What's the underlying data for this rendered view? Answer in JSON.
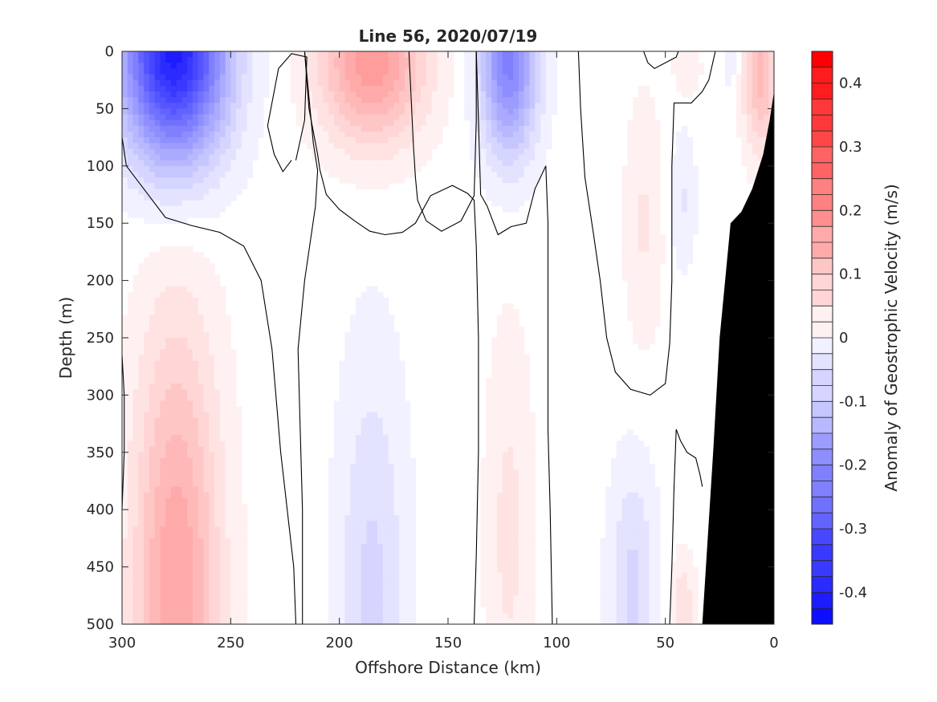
{
  "chart_data": {
    "type": "heatmap",
    "title": "Line 56, 2020/07/19",
    "xlabel": "Offshore Distance (km)",
    "ylabel": "Depth (m)",
    "colorbar_label": "Anomaly of Geostrophic Velocity (m/s)",
    "x_range": [
      300,
      0
    ],
    "y_range": [
      0,
      500
    ],
    "x_ticks": [
      "300",
      "250",
      "200",
      "150",
      "100",
      "50",
      "0"
    ],
    "y_ticks": [
      "0",
      "50",
      "100",
      "150",
      "200",
      "250",
      "300",
      "350",
      "400",
      "450",
      "500"
    ],
    "colorbar_range": [
      -0.45,
      0.45
    ],
    "colorbar_step": 0.025,
    "colorbar_ticks": [
      "0.4",
      "0.3",
      "0.2",
      "0.1",
      "0",
      "-0.1",
      "-0.2",
      "-0.3",
      "-0.4"
    ],
    "colormap": {
      "negative": "#0000ff",
      "zero": "#ffffff",
      "positive": "#ff0000"
    },
    "bathymetry_color": "#000000",
    "features": [
      {
        "x": 276,
        "depth": 0,
        "peak": -0.4,
        "width_km": 24,
        "depth_scale_m": 95
      },
      {
        "x": 185,
        "depth": 10,
        "peak": 0.18,
        "width_km": 24,
        "depth_scale_m": 70
      },
      {
        "x": 122,
        "depth": 10,
        "peak": -0.22,
        "width_km": 13,
        "depth_scale_m": 80
      },
      {
        "x": 275,
        "depth": 470,
        "peak": 0.16,
        "width_km": 20,
        "depth_scale_m": 230
      },
      {
        "x": 185,
        "depth": 480,
        "peak": -0.07,
        "width_km": 16,
        "depth_scale_m": 210
      },
      {
        "x": 122,
        "depth": 420,
        "peak": 0.045,
        "width_km": 11,
        "depth_scale_m": 180
      },
      {
        "x": 65,
        "depth": 470,
        "peak": -0.07,
        "width_km": 11,
        "depth_scale_m": 110
      },
      {
        "x": 60,
        "depth": 150,
        "peak": 0.04,
        "width_km": 9,
        "depth_scale_m": 110
      },
      {
        "x": 42,
        "depth": 130,
        "peak": -0.04,
        "width_km": 6,
        "depth_scale_m": 60
      },
      {
        "x": 40,
        "depth": 15,
        "peak": 0.04,
        "width_km": 6,
        "depth_scale_m": 25
      },
      {
        "x": 6,
        "depth": 20,
        "peak": 0.12,
        "width_km": 8,
        "depth_scale_m": 70
      },
      {
        "x": 20,
        "depth": 10,
        "peak": -0.03,
        "width_km": 4,
        "depth_scale_m": 25
      },
      {
        "x": 42,
        "depth": 490,
        "peak": 0.06,
        "width_km": 6,
        "depth_scale_m": 50
      }
    ],
    "zero_contours": [
      [
        [
          300,
          75
        ],
        [
          298,
          100
        ],
        [
          290,
          120
        ],
        [
          280,
          145
        ],
        [
          268,
          152
        ],
        [
          255,
          158
        ],
        [
          244,
          170
        ],
        [
          236,
          200
        ],
        [
          231,
          260
        ],
        [
          227,
          350
        ],
        [
          221,
          450
        ],
        [
          220,
          500
        ]
      ],
      [
        [
          300,
          265
        ],
        [
          299,
          300
        ],
        [
          299,
          350
        ],
        [
          300,
          400
        ]
      ],
      [
        [
          220,
          95
        ],
        [
          216,
          60
        ],
        [
          215,
          5
        ],
        [
          222,
          2
        ],
        [
          228,
          15
        ],
        [
          233,
          65
        ],
        [
          230,
          90
        ],
        [
          226,
          105
        ],
        [
          222,
          95
        ]
      ],
      [
        [
          216,
          0
        ],
        [
          214,
          50
        ],
        [
          210,
          90
        ],
        [
          209,
          103
        ],
        [
          206,
          125
        ],
        [
          200,
          138
        ],
        [
          193,
          148
        ],
        [
          186,
          157
        ],
        [
          179,
          160
        ],
        [
          171,
          158
        ],
        [
          165,
          150
        ],
        [
          158,
          126
        ],
        [
          148,
          117
        ],
        [
          141,
          124
        ],
        [
          138,
          130
        ],
        [
          137,
          170
        ],
        [
          136,
          250
        ],
        [
          136,
          350
        ],
        [
          137,
          440
        ],
        [
          138,
          500
        ]
      ],
      [
        [
          216,
          0
        ],
        [
          214,
          40
        ],
        [
          212,
          80
        ],
        [
          210,
          104
        ],
        [
          211,
          135
        ],
        [
          216,
          200
        ],
        [
          219,
          260
        ],
        [
          218,
          330
        ],
        [
          217,
          400
        ],
        [
          217,
          500
        ]
      ],
      [
        [
          168,
          0
        ],
        [
          167,
          40
        ],
        [
          166,
          80
        ],
        [
          165,
          110
        ],
        [
          164,
          130
        ],
        [
          160,
          148
        ],
        [
          153,
          157
        ],
        [
          144,
          148
        ],
        [
          138,
          126
        ],
        [
          137,
          60
        ],
        [
          137,
          0
        ]
      ],
      [
        [
          137,
          0
        ],
        [
          136,
          60
        ],
        [
          135,
          125
        ],
        [
          132,
          135
        ],
        [
          127,
          160
        ],
        [
          121,
          153
        ],
        [
          114,
          150
        ],
        [
          110,
          120
        ],
        [
          105,
          100
        ],
        [
          104,
          150
        ],
        [
          104,
          250
        ],
        [
          104,
          330
        ],
        [
          103,
          400
        ],
        [
          102,
          500
        ]
      ],
      [
        [
          90,
          0
        ],
        [
          89,
          50
        ],
        [
          87,
          110
        ],
        [
          83,
          160
        ],
        [
          80,
          200
        ],
        [
          77,
          250
        ],
        [
          73,
          280
        ],
        [
          66,
          295
        ],
        [
          57,
          300
        ],
        [
          50,
          290
        ],
        [
          48,
          255
        ],
        [
          47,
          200
        ],
        [
          47,
          100
        ],
        [
          46,
          45
        ],
        [
          38,
          45
        ],
        [
          33,
          35
        ],
        [
          30,
          25
        ],
        [
          27,
          0
        ]
      ],
      [
        [
          60,
          0
        ],
        [
          58,
          10
        ],
        [
          55,
          15
        ],
        [
          50,
          10
        ],
        [
          45,
          5
        ],
        [
          44,
          0
        ]
      ],
      [
        [
          48,
          500
        ],
        [
          47,
          450
        ],
        [
          46,
          380
        ],
        [
          45,
          330
        ],
        [
          43,
          340
        ],
        [
          40,
          350
        ],
        [
          36,
          355
        ],
        [
          34,
          370
        ],
        [
          33,
          380
        ]
      ]
    ],
    "bathymetry": [
      [
        0,
        35
      ],
      [
        2,
        60
      ],
      [
        5,
        90
      ],
      [
        10,
        120
      ],
      [
        15,
        140
      ],
      [
        20,
        150
      ],
      [
        22,
        190
      ],
      [
        25,
        250
      ],
      [
        28,
        350
      ],
      [
        33,
        500
      ],
      [
        0,
        500
      ]
    ]
  }
}
